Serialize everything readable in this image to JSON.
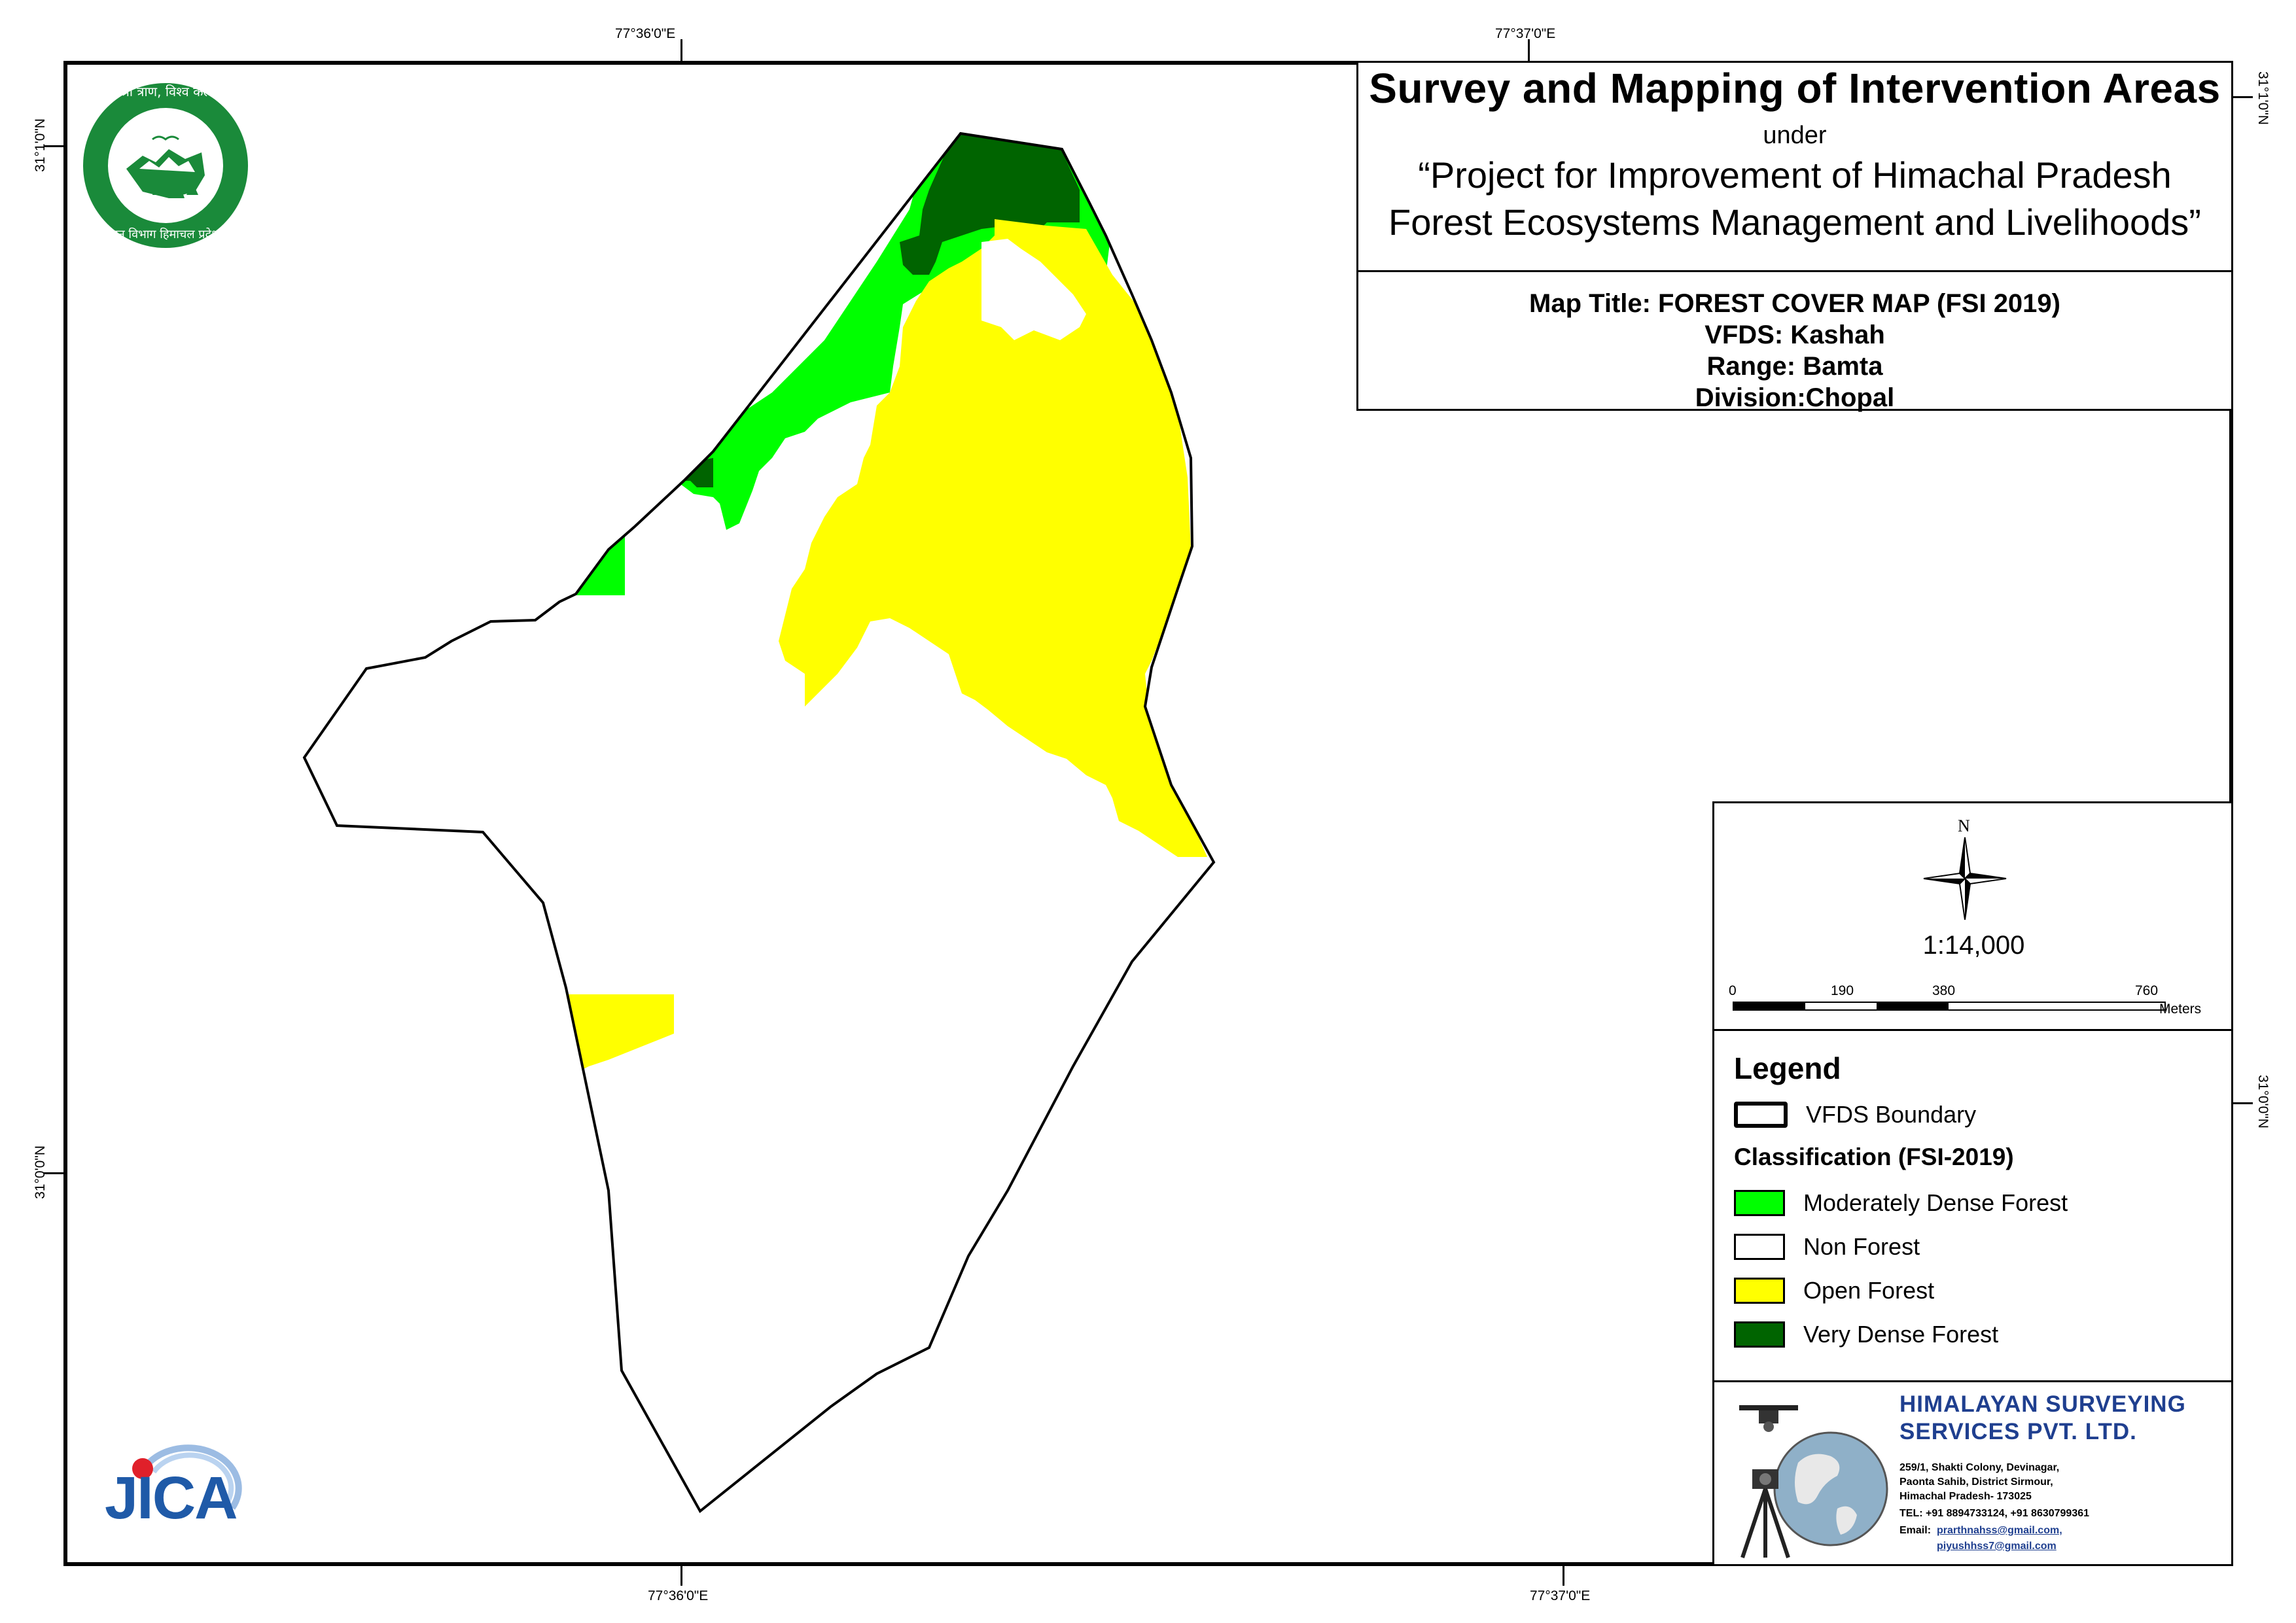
{
  "coordinates": {
    "top_left_lon": "77°36'0\"E",
    "top_right_lon": "77°37'0\"E",
    "bottom_left_lon": "77°36'0\"E",
    "bottom_right_lon": "77°37'0\"E",
    "left_top_lat": "31°1'0\"N",
    "left_bottom_lat": "31°0'0\"N",
    "right_top_lat": "31°1'0\"N",
    "right_bottom_lat": "31°0'0\"N"
  },
  "header": {
    "title": "Survey and Mapping of Intervention Areas",
    "under": "under",
    "project_line1": "“Project for Improvement of Himachal Pradesh",
    "project_line2": "Forest Ecosystems Management and Livelihoods”"
  },
  "map_info": {
    "map_title": "Map Title: FOREST COVER MAP (FSI 2019)",
    "vfds": "VFDS: Kashah",
    "range": "Range: Bamta",
    "division": "Division:Chopal"
  },
  "north_arrow": {
    "label": "N"
  },
  "scale": {
    "ratio": "1:14,000",
    "ticks": [
      "0",
      "190",
      "380",
      "760"
    ],
    "unit": "Meters"
  },
  "legend": {
    "title": "Legend",
    "boundary_label": "VFDS Boundary",
    "classification_title": "Classification (FSI-2019)",
    "items": [
      {
        "label": "Moderately Dense Forest",
        "color": "#00ff00"
      },
      {
        "label": "Non Forest",
        "color": "#ffffff"
      },
      {
        "label": "Open Forest",
        "color": "#ffff00"
      },
      {
        "label": "Very Dense Forest",
        "color": "#006400"
      }
    ]
  },
  "company": {
    "name_line1": "HIMALAYAN SURVEYING",
    "name_line2": "SERVICES PVT. LTD.",
    "address1": "259/1, Shakti Colony, Devinagar,",
    "address2": "Paonta Sahib, District Sirmour,",
    "address3": "Himachal Pradesh- 173025",
    "tel": "TEL: +91 8894733124, +91 8630799361",
    "email_label": "Email:",
    "email1": "prarthnahss@gmail.com,",
    "email2": "piyushhss7@gmail.com"
  },
  "logos": {
    "forest_dept_top": "वन श्री त्राण, विश्व कल्याण",
    "forest_dept_bottom": "वन विभाग हिमाचल प्रदेश",
    "jica": "JICA"
  },
  "colors": {
    "vdf": "#006400",
    "mdf": "#00ff00",
    "of": "#ffff00",
    "nf": "#ffffff",
    "company_blue": "#1f3f8f",
    "logo_green": "#1a8a3a"
  }
}
